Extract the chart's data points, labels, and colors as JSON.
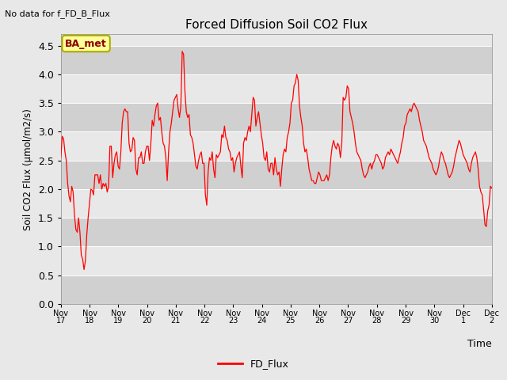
{
  "title": "Forced Diffusion Soil CO2 Flux",
  "xlabel": "Time",
  "ylabel": "Soil CO2 Flux (μmol/m2/s)",
  "top_left_text": "No data for f_FD_B_Flux",
  "legend_label": "FD_Flux",
  "line_color": "#ff0000",
  "ylim": [
    0.0,
    4.7
  ],
  "yticks": [
    0.0,
    0.5,
    1.0,
    1.5,
    2.0,
    2.5,
    3.0,
    3.5,
    4.0,
    4.5
  ],
  "bg_color": "#e8e8e8",
  "plot_bg_color": "#e8e8e8",
  "stripe_color": "#d0d0d0",
  "annotation_box_text": "BA_met",
  "annotation_box_facecolor": "#ffff99",
  "annotation_box_edgecolor": "#aaaa00",
  "xtick_labels": [
    "Nov 17",
    "Nov 18",
    "Nov 19",
    "Nov 20",
    "Nov 21",
    "Nov 22",
    "Nov 23",
    "Nov 24",
    "Nov 25",
    "Nov 26",
    "Nov 27",
    "Nov 28",
    "Nov 29",
    "Nov 30",
    "Dec 1",
    "Dec 2"
  ],
  "flux_values": [
    2.55,
    2.92,
    2.88,
    2.65,
    2.5,
    2.1,
    1.88,
    1.78,
    2.05,
    1.95,
    1.55,
    1.3,
    1.25,
    1.5,
    1.25,
    0.85,
    0.78,
    0.6,
    0.75,
    1.2,
    1.5,
    1.75,
    2.0,
    1.98,
    1.9,
    2.25,
    2.25,
    2.25,
    2.1,
    2.25,
    2.0,
    2.1,
    2.05,
    2.1,
    1.95,
    2.05,
    2.75,
    2.75,
    2.2,
    2.45,
    2.6,
    2.65,
    2.4,
    2.35,
    2.65,
    3.15,
    3.35,
    3.4,
    3.35,
    3.35,
    2.8,
    2.65,
    2.68,
    2.9,
    2.85,
    2.35,
    2.25,
    2.55,
    2.55,
    2.65,
    2.45,
    2.45,
    2.65,
    2.75,
    2.75,
    2.5,
    2.8,
    3.2,
    3.1,
    3.3,
    3.45,
    3.5,
    3.2,
    3.25,
    3.0,
    2.8,
    2.75,
    2.55,
    2.15,
    2.65,
    3.0,
    3.15,
    3.35,
    3.55,
    3.6,
    3.65,
    3.4,
    3.25,
    3.45,
    4.4,
    4.35,
    3.7,
    3.35,
    3.25,
    3.3,
    2.95,
    2.9,
    2.8,
    2.6,
    2.4,
    2.35,
    2.5,
    2.6,
    2.65,
    2.45,
    2.45,
    1.9,
    1.72,
    2.3,
    2.55,
    2.5,
    2.65,
    2.35,
    2.2,
    2.6,
    2.55,
    2.6,
    2.65,
    2.95,
    2.9,
    3.1,
    2.9,
    2.85,
    2.7,
    2.65,
    2.5,
    2.55,
    2.3,
    2.45,
    2.55,
    2.6,
    2.65,
    2.4,
    2.2,
    2.8,
    2.9,
    2.85,
    3.0,
    3.1,
    3.0,
    3.3,
    3.6,
    3.55,
    3.1,
    3.25,
    3.35,
    3.15,
    2.95,
    2.8,
    2.55,
    2.5,
    2.65,
    2.35,
    2.3,
    2.45,
    2.45,
    2.25,
    2.55,
    2.35,
    2.25,
    2.3,
    2.05,
    2.35,
    2.6,
    2.7,
    2.65,
    2.9,
    3.0,
    3.15,
    3.5,
    3.55,
    3.8,
    3.85,
    4.0,
    3.9,
    3.45,
    3.25,
    3.1,
    2.8,
    2.65,
    2.7,
    2.55,
    2.35,
    2.25,
    2.15,
    2.15,
    2.1,
    2.1,
    2.2,
    2.3,
    2.25,
    2.15,
    2.15,
    2.15,
    2.2,
    2.25,
    2.15,
    2.25,
    2.55,
    2.75,
    2.85,
    2.75,
    2.7,
    2.8,
    2.75,
    2.55,
    2.8,
    3.6,
    3.55,
    3.6,
    3.8,
    3.75,
    3.35,
    3.25,
    3.15,
    3.0,
    2.8,
    2.65,
    2.6,
    2.55,
    2.5,
    2.35,
    2.25,
    2.2,
    2.25,
    2.3,
    2.4,
    2.45,
    2.35,
    2.45,
    2.5,
    2.6,
    2.6,
    2.55,
    2.5,
    2.45,
    2.35,
    2.4,
    2.55,
    2.6,
    2.65,
    2.6,
    2.7,
    2.65,
    2.6,
    2.55,
    2.5,
    2.45,
    2.55,
    2.65,
    2.8,
    2.9,
    3.1,
    3.15,
    3.3,
    3.35,
    3.4,
    3.35,
    3.45,
    3.5,
    3.45,
    3.4,
    3.35,
    3.2,
    3.1,
    3.0,
    2.85,
    2.8,
    2.75,
    2.65,
    2.55,
    2.5,
    2.45,
    2.35,
    2.3,
    2.25,
    2.3,
    2.4,
    2.55,
    2.65,
    2.6,
    2.5,
    2.45,
    2.35,
    2.25,
    2.2,
    2.25,
    2.3,
    2.4,
    2.55,
    2.65,
    2.75,
    2.85,
    2.8,
    2.7,
    2.6,
    2.55,
    2.5,
    2.45,
    2.35,
    2.3,
    2.45,
    2.55,
    2.6,
    2.65,
    2.55,
    2.35,
    2.05,
    1.95,
    1.9,
    1.65,
    1.38,
    1.35,
    1.62,
    1.72,
    2.05,
    2.02
  ]
}
